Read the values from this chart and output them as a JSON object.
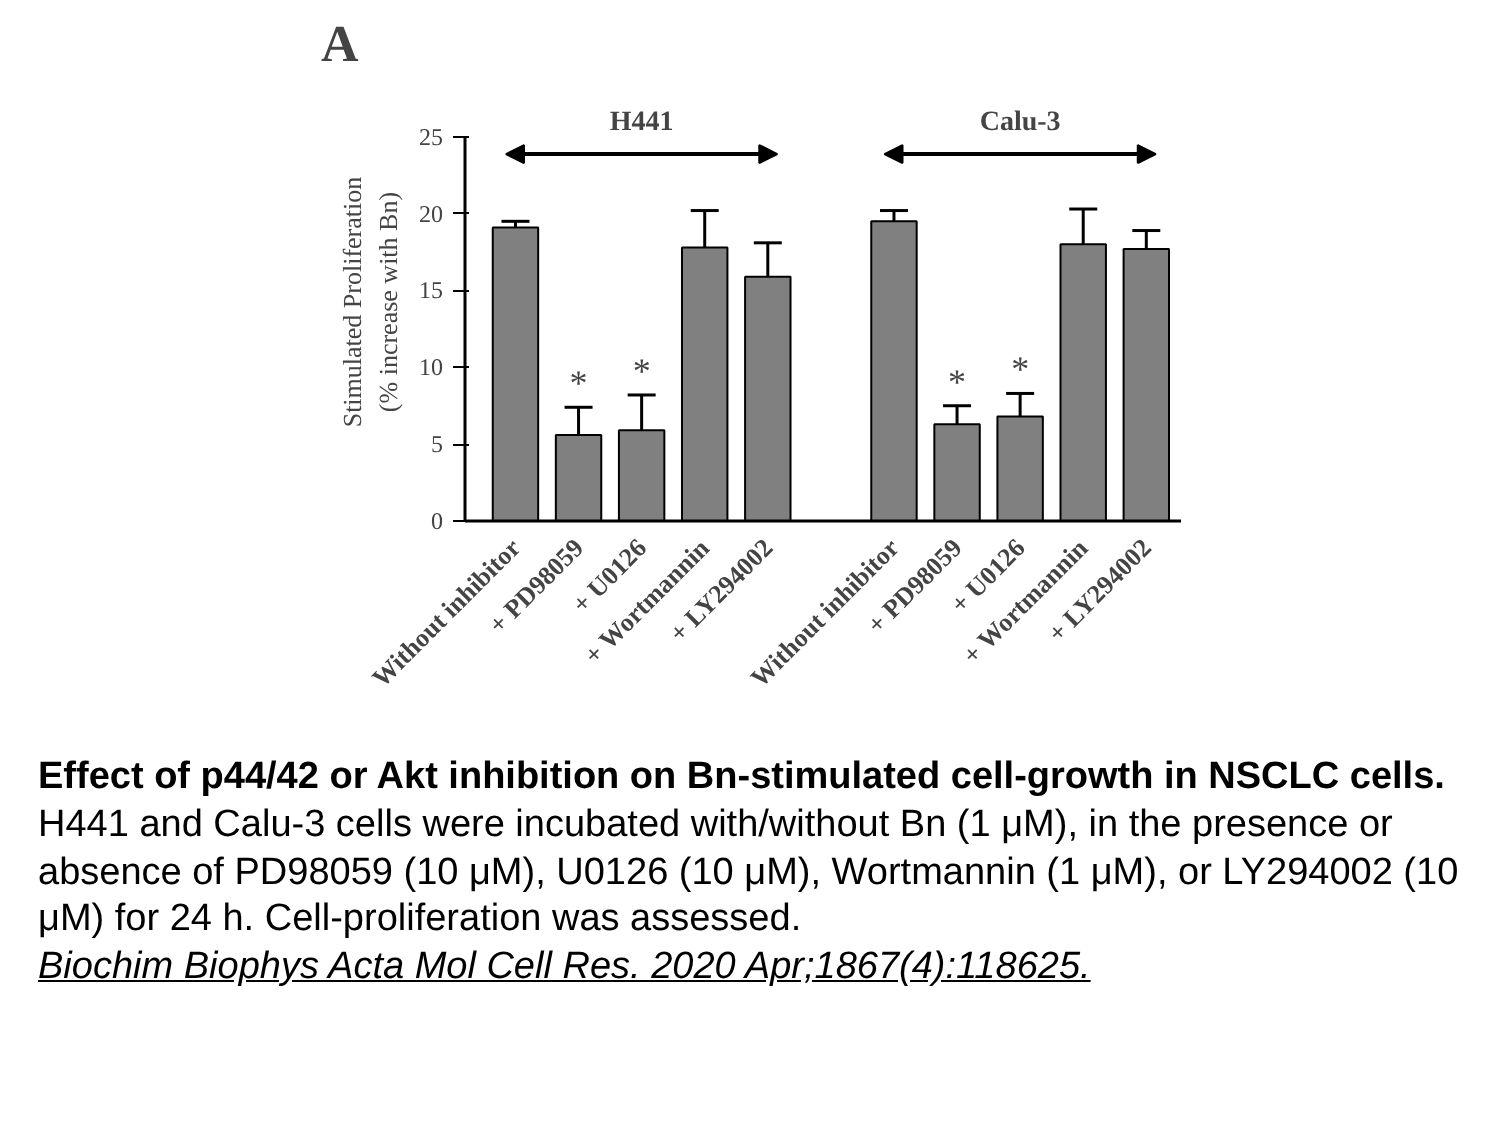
{
  "chart_data": {
    "type": "bar",
    "title": "A",
    "ylabel": "Stimulated Proliferation\n(% increase with Bn)",
    "categories": [
      "Without inhibitor",
      "+ PD98059",
      "+ U0126",
      "+ Wortmannin",
      "+ LY294002",
      null,
      "Without inhibitor",
      "+ PD98059",
      "+ U0126",
      "+ Wortmannin",
      "+ LY294002"
    ],
    "values": [
      19.1,
      5.6,
      5.9,
      17.8,
      15.9,
      null,
      19.5,
      6.3,
      6.8,
      18.0,
      17.7
    ],
    "errors": [
      [
        19.1,
        19.5
      ],
      [
        5.6,
        7.4
      ],
      [
        5.9,
        8.2
      ],
      [
        17.8,
        20.2
      ],
      [
        15.9,
        18.1
      ],
      null,
      [
        19.5,
        20.2
      ],
      [
        6.3,
        7.5
      ],
      [
        6.8,
        8.3
      ],
      [
        18.0,
        20.3
      ],
      [
        17.7,
        18.9
      ]
    ],
    "value_labels": [
      null,
      "*",
      "*",
      null,
      null,
      null,
      null,
      "*",
      "*",
      null,
      null
    ],
    "color": "#808080",
    "ylim": [
      0,
      25
    ],
    "yticks": [
      0,
      5,
      10,
      15,
      20,
      25
    ],
    "grid": false,
    "annotations": [
      "H441",
      "Calu-3",
      "Effect of p44/42 or Akt inhibition on Bn-stimulated cell-growth in NSCLC cells.",
      "H441 and Calu-3 cells were incubated with/without Bn (1 μM), in the presence or absence of PD98059 (10 μM), U0126 (10 μM), Wortmannin (1 μM), or LY294002 (10 μM) for 24 h. Cell-proliferation was assessed.",
      "Biochim Biophys Acta Mol Cell Res. 2020 Apr;1867(4):118625."
    ]
  }
}
